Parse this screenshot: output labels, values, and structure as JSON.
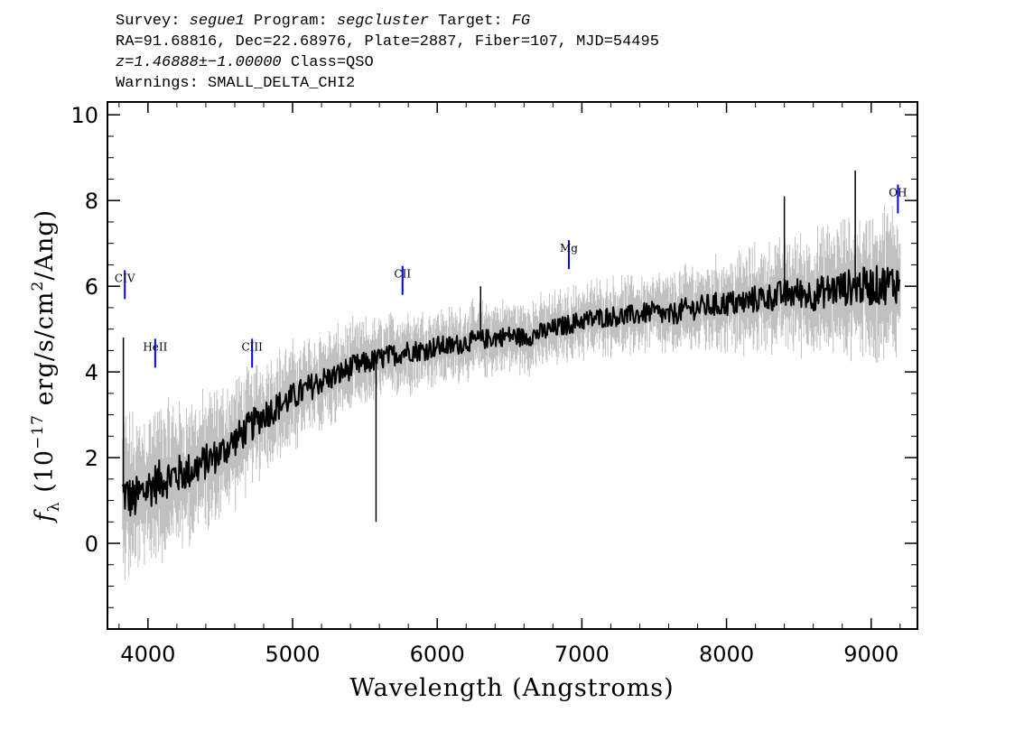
{
  "header": {
    "survey_label": "Survey:",
    "survey": "segue1",
    "program_label": "Program:",
    "program": "segcluster",
    "target_label": "Target:",
    "target": "FG",
    "line2": "RA=91.68816, Dec=22.68976, Plate=2887, Fiber=107, MJD=54495",
    "redshift": "z=1.46888±−1.00000",
    "class_text": "Class=QSO",
    "warnings": "Warnings: SMALL_DELTA_CHI2"
  },
  "chart_data": {
    "type": "line",
    "xlabel": "Wavelength (Angstroms)",
    "ylabel_prefix": "f",
    "ylabel_sub": "λ",
    "ylabel_open": " (10",
    "ylabel_exp": "−17",
    "ylabel_mid": " erg/s/cm",
    "ylabel_exp2": "2",
    "ylabel_close": "/Ang)",
    "xlim": [
      3720,
      9320
    ],
    "ylim": [
      -2.0,
      10.3
    ],
    "xticks": [
      4000,
      5000,
      6000,
      7000,
      8000,
      9000
    ],
    "xtick_labels": [
      "4000",
      "5000",
      "6000",
      "7000",
      "8000",
      "9000"
    ],
    "yticks": [
      0,
      2,
      4,
      6,
      8,
      10
    ],
    "ytick_labels": [
      "0",
      "2",
      "4",
      "6",
      "8",
      "10"
    ],
    "grid": false,
    "series": [
      {
        "role": "flux",
        "color": "#000000",
        "x": [
          3825,
          3900,
          4000,
          4100,
          4200,
          4300,
          4400,
          4500,
          4600,
          4700,
          4800,
          4900,
          5000,
          5100,
          5200,
          5300,
          5400,
          5500,
          5600,
          5700,
          5800,
          5900,
          6000,
          6100,
          6200,
          6300,
          6400,
          6500,
          6600,
          6700,
          6800,
          6900,
          7000,
          7100,
          7200,
          7300,
          7400,
          7500,
          7600,
          7700,
          7800,
          7900,
          8000,
          8100,
          8200,
          8300,
          8400,
          8500,
          8600,
          8700,
          8800,
          8900,
          9000,
          9100,
          9200
        ],
        "y": [
          1.2,
          1.0,
          1.3,
          1.5,
          1.6,
          1.7,
          1.9,
          2.1,
          2.4,
          2.7,
          3.0,
          3.2,
          3.4,
          3.6,
          3.8,
          3.9,
          4.1,
          4.2,
          4.3,
          4.4,
          4.5,
          4.5,
          4.6,
          4.6,
          4.7,
          4.75,
          4.8,
          4.85,
          4.8,
          4.9,
          5.0,
          5.1,
          5.2,
          5.25,
          5.3,
          5.3,
          5.35,
          5.4,
          5.3,
          5.45,
          5.5,
          5.55,
          5.6,
          5.6,
          5.7,
          5.75,
          5.8,
          5.85,
          5.8,
          5.9,
          5.95,
          6.0,
          6.0,
          6.05,
          6.1
        ]
      },
      {
        "role": "error",
        "color": "#c0c0c0",
        "x": [
          3825,
          4500,
          5500,
          6500,
          7500,
          8500,
          9200
        ],
        "y": [
          1.2,
          0.9,
          0.6,
          0.5,
          0.55,
          0.8,
          1.1
        ]
      }
    ],
    "spikes": [
      {
        "x": 3830,
        "y": 4.8
      },
      {
        "x": 5577,
        "y": 0.5
      },
      {
        "x": 6300,
        "y": 6.0
      },
      {
        "x": 8400,
        "y": 8.1
      },
      {
        "x": 8890,
        "y": 8.7
      }
    ],
    "annotations": [
      {
        "label": "CIV",
        "x": 3840,
        "y_line": 5.7,
        "y_label": 6.1,
        "color": "#0000ff"
      },
      {
        "label": "HeII",
        "x": 4050,
        "y_line": 4.1,
        "y_label": 4.5,
        "color": "#0000ff"
      },
      {
        "label": "CIII",
        "x": 4720,
        "y_line": 4.1,
        "y_label": 4.5,
        "color": "#0000ff"
      },
      {
        "label": "CII",
        "x": 5760,
        "y_line": 5.8,
        "y_label": 6.2,
        "color": "#0000ff"
      },
      {
        "label": "Mg",
        "x": 6910,
        "y_line": 6.4,
        "y_label": 6.8,
        "color": "#0000ff"
      },
      {
        "label": "OH",
        "x": 9185,
        "y_line": 7.7,
        "y_label": 8.1,
        "color": "#0000ff"
      }
    ]
  }
}
